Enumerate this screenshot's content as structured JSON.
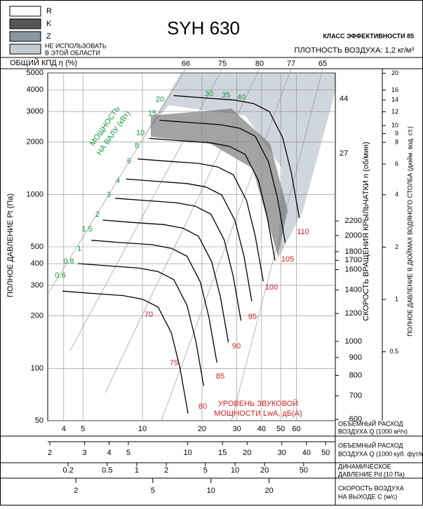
{
  "chart_data": {
    "type": "line",
    "title": "SYH 630",
    "efficiency_class": "КЛАСС ЭФФЕКТИВНОСТИ 85",
    "density": "ПЛОТНОСТЬ ВОЗДУХА: 1,2 кг/м³",
    "legend": [
      "R",
      "K",
      "Z",
      "НЕ ИСПОЛЬЗОВАТЬ",
      "В ЭТОЙ ОБЛАСТИ"
    ],
    "efficiency_label": "ОБЩИЙ КПД η (%)",
    "efficiency_values": [
      66,
      75,
      80,
      77,
      65
    ],
    "ylabel": "ПОЛНОЕ ДАВЛЕНИЕ Pt (Па)",
    "log_x": true,
    "log_y": true,
    "grid": true,
    "xlim": [
      3.32,
      94.4
    ],
    "xticks": [
      4,
      5,
      10,
      20,
      30,
      40,
      50,
      60
    ],
    "xlabel": [
      "ОБЪЕМНЫЙ РАСХОД",
      "ВОЗДУХА Q (1000 м³/ч)"
    ],
    "ylim": [
      50,
      5000
    ],
    "yticks": [
      50,
      100,
      200,
      300,
      400,
      500,
      1000,
      2000,
      3000,
      4000,
      5000
    ],
    "speed_label": "СКОРОСТЬ ВРАЩЕНИЯ КРЫЛЬЧАТКИ  n (об/мин)",
    "speed_lim": [
      595,
      5800
    ],
    "speed_ticks": [
      600,
      700,
      800,
      900,
      1000,
      1200,
      1400,
      1600,
      1700,
      1800,
      2000,
      2200
    ],
    "curve_end_labels": [
      "44",
      "27"
    ],
    "inch_label": "ПОЛНОЕ ДАВЛЕНИЕ В ДЮЙМАХ ВОДЯНОГО СТОЛБА (дюйм. вод. ст.)",
    "inch_lim": [
      0.2008,
      20.08
    ],
    "inch_ticks": [
      0.5,
      1,
      2,
      4,
      6,
      8,
      9,
      10,
      12,
      14,
      16,
      20
    ],
    "power_label": [
      "МОЩНОСТЬ",
      "НА ВАЛУ (кВт)"
    ],
    "power_values": [
      0.6,
      0.8,
      1,
      1.5,
      2,
      3,
      4,
      6,
      8,
      10,
      15,
      20,
      30,
      35,
      40
    ],
    "sound_label": [
      "УРОВЕНЬ ЗВУКОВОЙ",
      "МОЩНОСТИ LwA, дБ(А)"
    ],
    "sound_values": [
      70,
      75,
      80,
      85,
      90,
      95,
      100,
      105,
      110
    ],
    "bottom_scales": [
      {
        "label": [
          "ОБЪЕМНЫЙ РАСХОД",
          "ВОЗДУХА Q (1000 куб. фут/мин)"
        ],
        "lim": [
          1.95,
          56
        ],
        "ticks": [
          2,
          3,
          4,
          5,
          10,
          15,
          20,
          30,
          40,
          50
        ]
      },
      {
        "label": [
          "ДИНАМИЧЕСКОЕ",
          "ДАВЛЕНИЕ Pd (10 Па)"
        ],
        "lim": [
          0.124,
          105
        ],
        "ticks": [
          0.2,
          0.5,
          1,
          2,
          5,
          10,
          20,
          50
        ]
      },
      {
        "label": [
          "СКОРОСТЬ ВОЗДУХА",
          "НА ВЫХОДЕ C (м/с)"
        ],
        "lim": [
          1.43,
          44
        ],
        "ticks": [
          2,
          5,
          10,
          20
        ]
      }
    ],
    "series": [
      {
        "color": "#000000",
        "x": [
          3.94,
          5.5,
          8,
          10,
          12,
          14,
          15.5,
          17
        ],
        "values": [
          278,
          270,
          262,
          250,
          225,
          160,
          100,
          55
        ]
      },
      {
        "color": "#000000",
        "x": [
          4.73,
          6.6,
          9.6,
          12,
          14.4,
          16.8,
          18.6,
          20.4
        ],
        "values": [
          400,
          389,
          377,
          360,
          324,
          230,
          144,
          79
        ]
      },
      {
        "color": "#000000",
        "x": [
          5.52,
          7.7,
          11.2,
          14,
          16.8,
          19.6,
          21.7,
          23.8
        ],
        "values": [
          545,
          529,
          514,
          490,
          441,
          314,
          196,
          108
        ]
      },
      {
        "color": "#000000",
        "x": [
          6.3,
          8.8,
          12.8,
          16,
          19.2,
          22.4,
          24.8,
          27.2
        ],
        "values": [
          712,
          691,
          671,
          640,
          576,
          410,
          256,
          141
        ]
      },
      {
        "color": "#000000",
        "x": [
          7.29,
          10.2,
          14.8,
          18.5,
          22.2,
          25.9,
          28.7,
          31.5
        ],
        "values": [
          951,
          924,
          897,
          856,
          770,
          548,
          342,
          188
        ]
      },
      {
        "color": "#000000",
        "x": [
          8.27,
          11.6,
          16.8,
          21,
          25.2,
          29.4,
          32.6,
          35.7
        ],
        "values": [
          1226,
          1191,
          1155,
          1103,
          992,
          706,
          441,
          243
        ]
      },
      {
        "color": "#000000",
        "x": [
          9.46,
          13.2,
          19.2,
          24,
          28.8,
          33.6,
          37.2,
          40.8
        ],
        "values": [
          1601,
          1555,
          1509,
          1440,
          1296,
          922,
          576,
          317
        ]
      },
      {
        "color": "#000000",
        "x": [
          10.8,
          15.1,
          22,
          27.5,
          33,
          38.5,
          42.6,
          46.8
        ],
        "values": [
          2102,
          2042,
          1981,
          1891,
          1702,
          1210,
          756,
          416
        ]
      },
      {
        "color": "#000000",
        "x": [
          12.2,
          17.1,
          24.8,
          31,
          37.2,
          43.4,
          48.1,
          52.7
        ],
        "values": [
          2672,
          2595,
          2518,
          2403,
          2162,
          1538,
          961,
          529
        ]
      },
      {
        "color": "#000000",
        "x": [
          14.4,
          20.1,
          29.2,
          36.5,
          43.8,
          51.1,
          56.6,
          62.1
        ],
        "values": [
          3704,
          3597,
          3490,
          3331,
          2998,
          2132,
          1332,
          733
        ]
      }
    ]
  }
}
